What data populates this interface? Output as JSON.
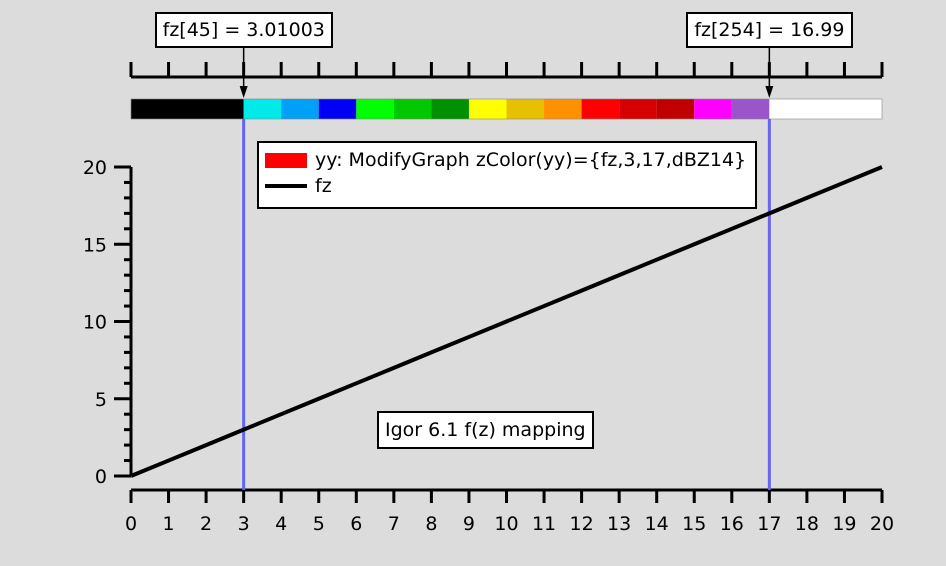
{
  "chart_data": {
    "type": "line",
    "title": "Igor 6.1 f(z) mapping",
    "xlabel": "",
    "ylabel": "",
    "xlim": [
      0,
      20
    ],
    "ylim": [
      0,
      20
    ],
    "grid": false,
    "x_ticks": [
      0,
      1,
      2,
      3,
      4,
      5,
      6,
      7,
      8,
      9,
      10,
      11,
      12,
      13,
      14,
      15,
      16,
      17,
      18,
      19,
      20
    ],
    "y_ticks": [
      0,
      5,
      10,
      15,
      20
    ],
    "series": [
      {
        "name": "fz",
        "color": "#000000",
        "x": [
          0,
          1,
          2,
          3,
          4,
          5,
          6,
          7,
          8,
          9,
          10,
          11,
          12,
          13,
          14,
          15,
          16,
          17,
          18,
          19,
          20
        ],
        "y": [
          0,
          1,
          2,
          3,
          4,
          5,
          6,
          7,
          8,
          9,
          10,
          11,
          12,
          13,
          14,
          15,
          16,
          17,
          18,
          19,
          20
        ]
      }
    ],
    "legend": {
      "position": "top-center-inset",
      "entries": [
        {
          "label": "yy: ModifyGraph zColor(yy)={fz,3,17,dBZ14}",
          "swatch": "fill",
          "color": "#ff0000"
        },
        {
          "label": "fz",
          "swatch": "line",
          "color": "#000000"
        }
      ]
    },
    "colorbar": {
      "range": [
        0,
        20
      ],
      "colortable": "dBZ14",
      "zmin": 3,
      "zmax": 17,
      "segments": [
        {
          "from": 0,
          "to": 3,
          "color": "#000000"
        },
        {
          "from": 3,
          "to": 4,
          "color": "#00eaea"
        },
        {
          "from": 4,
          "to": 5,
          "color": "#00a0f6"
        },
        {
          "from": 5,
          "to": 6,
          "color": "#0000f6"
        },
        {
          "from": 6,
          "to": 7,
          "color": "#00ff00"
        },
        {
          "from": 7,
          "to": 8,
          "color": "#00c800"
        },
        {
          "from": 8,
          "to": 9,
          "color": "#009000"
        },
        {
          "from": 9,
          "to": 10,
          "color": "#ffff00"
        },
        {
          "from": 10,
          "to": 11,
          "color": "#e7c000"
        },
        {
          "from": 11,
          "to": 12,
          "color": "#ff9000"
        },
        {
          "from": 12,
          "to": 13,
          "color": "#ff0000"
        },
        {
          "from": 13,
          "to": 14,
          "color": "#d60000"
        },
        {
          "from": 14,
          "to": 15,
          "color": "#c00000"
        },
        {
          "from": 15,
          "to": 16,
          "color": "#ff00ff"
        },
        {
          "from": 16,
          "to": 17,
          "color": "#9955c9"
        },
        {
          "from": 17,
          "to": 20,
          "color": "#ffffff"
        }
      ]
    },
    "cursor_lines": [
      {
        "x": 3,
        "color": "#6464f0",
        "tag": "fz[45] = 3.01003"
      },
      {
        "x": 17,
        "color": "#6464f0",
        "tag": "fz[254] = 16.99"
      }
    ],
    "annotations": [
      "Igor 6.1 f(z) mapping"
    ]
  },
  "tags": {
    "left": "fz[45] = 3.01003",
    "right": "fz[254] = 16.99"
  },
  "legend": {
    "entry1": "yy: ModifyGraph zColor(yy)={fz,3,17,dBZ14}",
    "entry1_color": "#ff0000",
    "entry2": "fz"
  },
  "note": "Igor 6.1 f(z) mapping"
}
